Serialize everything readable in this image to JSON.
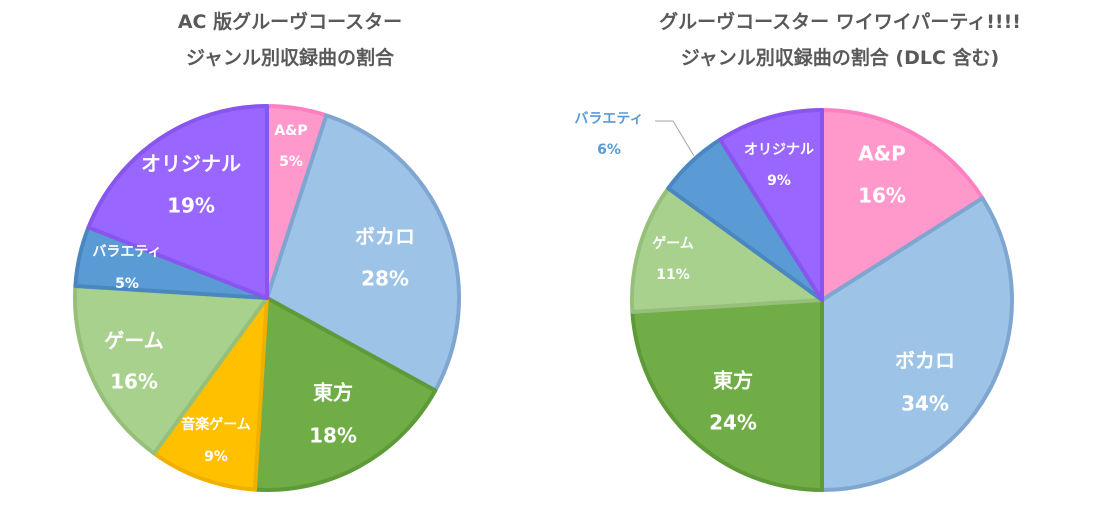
{
  "chart_data": [
    {
      "type": "pie",
      "title_line1": "AC 版グルーヴコースター",
      "title_line2": "ジャンル別収録曲の割合",
      "slices": [
        {
          "label": "A&P",
          "value": 5,
          "percent": "5%",
          "color": "#FF99CC",
          "border": "#FF80C0"
        },
        {
          "label": "ボカロ",
          "value": 28,
          "percent": "28%",
          "color": "#9DC3E6",
          "border": "#7FA6D0"
        },
        {
          "label": "東方",
          "value": 18,
          "percent": "18%",
          "color": "#70AD47",
          "border": "#5E9A38"
        },
        {
          "label": "音楽ゲーム",
          "value": 9,
          "percent": "9%",
          "color": "#FFC000",
          "border": "#F0B000"
        },
        {
          "label": "ゲーム",
          "value": 16,
          "percent": "16%",
          "color": "#A9D18E",
          "border": "#96C079"
        },
        {
          "label": "バラエティ",
          "value": 5,
          "percent": "5%",
          "color": "#5B9BD5",
          "border": "#4A87C0"
        },
        {
          "label": "オリジナル",
          "value": 19,
          "percent": "19%",
          "color": "#9966FF",
          "border": "#8855EE"
        }
      ]
    },
    {
      "type": "pie",
      "title_line1": "グルーヴコースター ワイワイパーティ!!!!",
      "title_line2": "ジャンル別収録曲の割合 (DLC 含む)",
      "slices": [
        {
          "label": "A&P",
          "value": 16,
          "percent": "16%",
          "color": "#FF99CC",
          "border": "#FF80C0"
        },
        {
          "label": "ボカロ",
          "value": 34,
          "percent": "34%",
          "color": "#9DC3E6",
          "border": "#7FA6D0"
        },
        {
          "label": "東方",
          "value": 24,
          "percent": "24%",
          "color": "#70AD47",
          "border": "#5E9A38"
        },
        {
          "label": "ゲーム",
          "value": 11,
          "percent": "11%",
          "color": "#A9D18E",
          "border": "#96C079"
        },
        {
          "label": "バラエティ",
          "value": 6,
          "percent": "6%",
          "color": "#5B9BD5",
          "border": "#4A87C0"
        },
        {
          "label": "オリジナル",
          "value": 9,
          "percent": "9%",
          "color": "#9966FF",
          "border": "#8855EE"
        }
      ]
    }
  ]
}
